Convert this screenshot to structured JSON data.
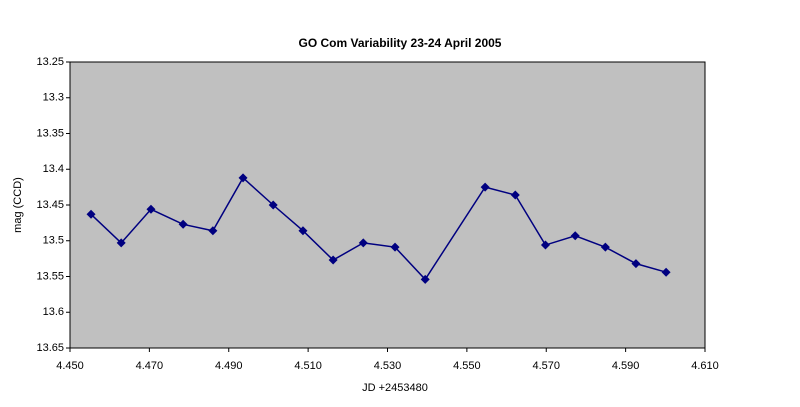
{
  "chart_data": {
    "type": "line",
    "title": "GO Com  Variability 23-24 April 2005",
    "x_label": "JD +2453480",
    "y_label": "mag (CCD)",
    "x": [
      4.4553,
      4.4629,
      4.4704,
      4.4785,
      4.486,
      4.4936,
      4.5012,
      4.5087,
      4.5163,
      4.5239,
      4.5319,
      4.5395,
      4.5546,
      4.5622,
      4.5698,
      4.5773,
      4.5849,
      4.5926,
      4.6002
    ],
    "series": [
      {
        "name": "GO Com",
        "color": "#000080",
        "values": [
          13.463,
          13.503,
          13.456,
          13.477,
          13.486,
          13.412,
          13.45,
          13.486,
          13.527,
          13.503,
          13.509,
          13.554,
          13.425,
          13.436,
          13.506,
          13.493,
          13.509,
          13.532,
          13.544
        ]
      }
    ],
    "xlim": [
      4.45,
      4.61
    ],
    "xticks": [
      {
        "value": 4.45,
        "label": "4.450"
      },
      {
        "value": 4.47,
        "label": "4.470"
      },
      {
        "value": 4.49,
        "label": "4.490"
      },
      {
        "value": 4.51,
        "label": "4.510"
      },
      {
        "value": 4.53,
        "label": "4.530"
      },
      {
        "value": 4.55,
        "label": "4.550"
      },
      {
        "value": 4.57,
        "label": "4.570"
      },
      {
        "value": 4.59,
        "label": "4.590"
      },
      {
        "value": 4.61,
        "label": "4.610"
      }
    ],
    "ylim": [
      13.25,
      13.65
    ],
    "yticks": [
      13.25,
      13.3,
      13.35,
      13.4,
      13.45,
      13.5,
      13.55,
      13.6,
      13.65
    ],
    "y_inverted": true,
    "grid": false,
    "plot_background": "#c0c0c0"
  }
}
